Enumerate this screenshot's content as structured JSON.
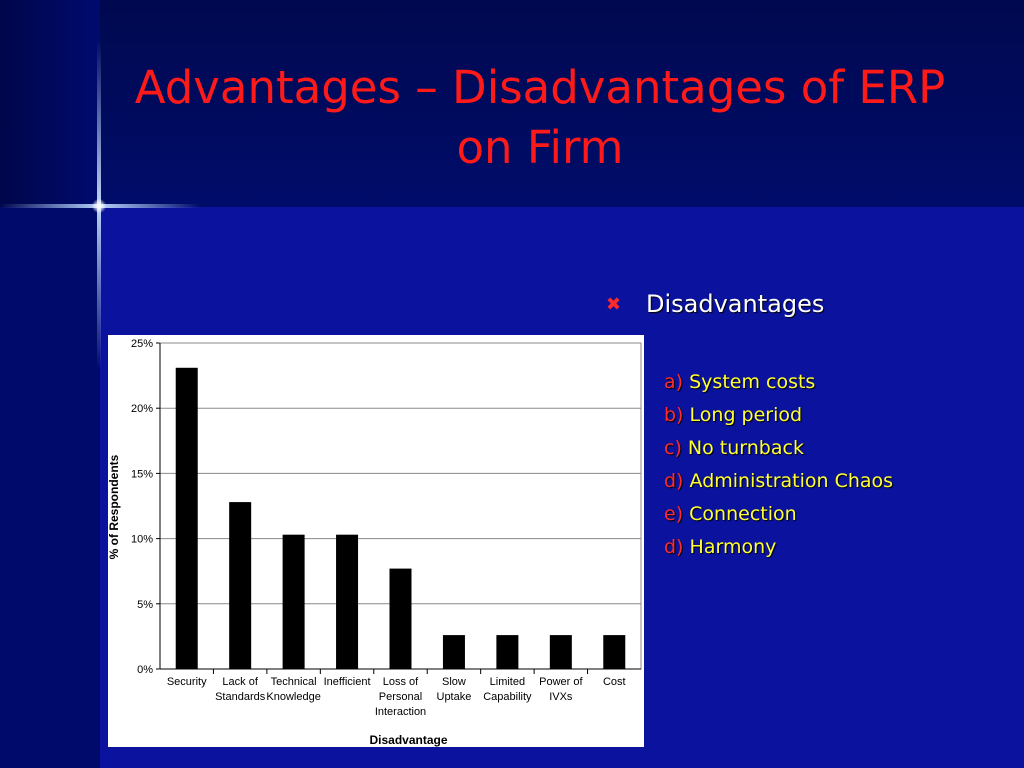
{
  "slide": {
    "title": "Advantages – Disadvantages of ERP on Firm",
    "bullet_heading": "Disadvantages",
    "items": [
      {
        "letter": "a)",
        "text": "System costs"
      },
      {
        "letter": "b)",
        "text": "Long period"
      },
      {
        "letter": "c)",
        "text": "No turnback"
      },
      {
        "letter": "d)",
        "text": "Administration Chaos"
      },
      {
        "letter": "e)",
        "text": "Connection"
      },
      {
        "letter": "d)",
        "text": "Harmony"
      }
    ],
    "colors": {
      "background": "#0b139e",
      "title": "#ff1a1a",
      "letter": "#ff2a2a",
      "item": "#ffff33"
    }
  },
  "chart_data": {
    "type": "bar",
    "categories": [
      [
        "Security"
      ],
      [
        "Lack of",
        "Standards"
      ],
      [
        "Technical",
        "Knowledge"
      ],
      [
        "Inefficient"
      ],
      [
        "Loss of",
        "Personal",
        "Interaction"
      ],
      [
        "Slow",
        "Uptake"
      ],
      [
        "Limited",
        "Capability"
      ],
      [
        "Power of",
        "IVXs"
      ],
      [
        "Cost"
      ]
    ],
    "values": [
      23.1,
      12.8,
      10.3,
      10.3,
      7.7,
      2.6,
      2.6,
      2.6,
      2.6
    ],
    "xlabel": "Disadvantage",
    "ylabel": "% of Respondents",
    "ylim": [
      0,
      25
    ],
    "yticks": [
      0,
      5,
      10,
      15,
      20,
      25
    ],
    "ytick_labels": [
      "0%",
      "5%",
      "10%",
      "15%",
      "20%",
      "25%"
    ],
    "grid": true,
    "bar_color": "#000000"
  }
}
